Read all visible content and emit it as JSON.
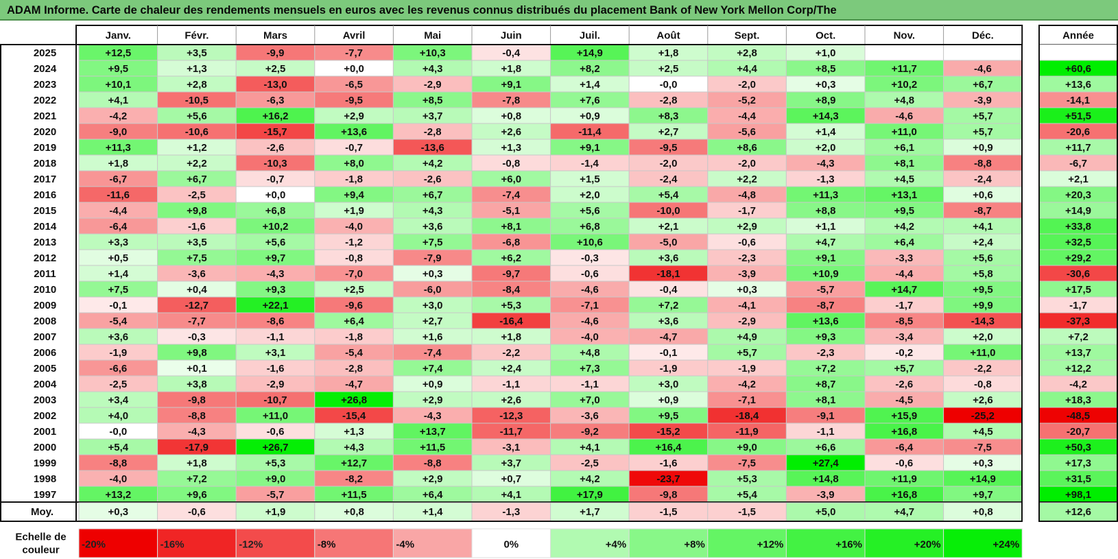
{
  "title": "ADAM Informe. Carte de chaleur des rendements mensuels en euros avec les revenus connus distribués du placement Bank of New York Mellon Corp/The",
  "chart_data": {
    "type": "heatmap",
    "months": [
      "Janv.",
      "Févr.",
      "Mars",
      "Avril",
      "Mai",
      "Juin",
      "Juil.",
      "Août",
      "Sept.",
      "Oct.",
      "Nov.",
      "Déc."
    ],
    "year_header": "Année",
    "rows": [
      {
        "year": "2025",
        "values": [
          "+12,5",
          "+3,5",
          "-9,9",
          "-7,7",
          "+10,3",
          "-0,4",
          "+14,9",
          "+1,8",
          "+2,8",
          "+1,0",
          "",
          ""
        ],
        "annual": ""
      },
      {
        "year": "2024",
        "values": [
          "+9,5",
          "+1,3",
          "+2,5",
          "+0,0",
          "+4,3",
          "+1,8",
          "+8,2",
          "+2,5",
          "+4,4",
          "+8,5",
          "+11,7",
          "-4,6"
        ],
        "annual": "+60,6"
      },
      {
        "year": "2023",
        "values": [
          "+10,1",
          "+2,8",
          "-13,0",
          "-6,5",
          "-2,9",
          "+9,1",
          "+1,4",
          "-0,0",
          "-2,0",
          "+0,3",
          "+10,2",
          "+6,7"
        ],
        "annual": "+13,6"
      },
      {
        "year": "2022",
        "values": [
          "+4,1",
          "-10,5",
          "-6,3",
          "-9,5",
          "+8,5",
          "-7,8",
          "+7,6",
          "-2,8",
          "-5,2",
          "+8,9",
          "+4,8",
          "-3,9"
        ],
        "annual": "-14,1"
      },
      {
        "year": "2021",
        "values": [
          "-4,2",
          "+5,6",
          "+16,2",
          "+2,9",
          "+3,7",
          "+0,8",
          "+0,9",
          "+8,3",
          "-4,4",
          "+14,3",
          "-4,6",
          "+5,7"
        ],
        "annual": "+51,5"
      },
      {
        "year": "2020",
        "values": [
          "-9,0",
          "-10,6",
          "-15,7",
          "+13,6",
          "-2,8",
          "+2,6",
          "-11,4",
          "+2,7",
          "-5,6",
          "+1,4",
          "+11,0",
          "+5,7"
        ],
        "annual": "-20,6"
      },
      {
        "year": "2019",
        "values": [
          "+11,3",
          "+1,2",
          "-2,6",
          "-0,7",
          "-13,6",
          "+1,3",
          "+9,1",
          "-9,5",
          "+8,6",
          "+2,0",
          "+6,1",
          "+0,9"
        ],
        "annual": "+11,7"
      },
      {
        "year": "2018",
        "values": [
          "+1,8",
          "+2,2",
          "-10,3",
          "+8,0",
          "+4,2",
          "-0,8",
          "-1,4",
          "-2,0",
          "-2,0",
          "-4,3",
          "+8,1",
          "-8,8"
        ],
        "annual": "-6,7"
      },
      {
        "year": "2017",
        "values": [
          "-6,7",
          "+6,7",
          "-0,7",
          "-1,8",
          "-2,6",
          "+6,0",
          "+1,5",
          "-2,4",
          "+2,2",
          "-1,3",
          "+4,5",
          "-2,4"
        ],
        "annual": "+2,1"
      },
      {
        "year": "2016",
        "values": [
          "-11,6",
          "-2,5",
          "+0,0",
          "+9,4",
          "+6,7",
          "-7,4",
          "+2,0",
          "+5,4",
          "-4,8",
          "+11,3",
          "+13,1",
          "+0,6"
        ],
        "annual": "+20,3"
      },
      {
        "year": "2015",
        "values": [
          "-4,4",
          "+9,8",
          "+6,8",
          "+1,9",
          "+4,3",
          "-5,1",
          "+5,6",
          "-10,0",
          "-1,7",
          "+8,8",
          "+9,5",
          "-8,7"
        ],
        "annual": "+14,9"
      },
      {
        "year": "2014",
        "values": [
          "-6,4",
          "-1,6",
          "+10,2",
          "-4,0",
          "+3,6",
          "+8,1",
          "+6,8",
          "+2,1",
          "+2,9",
          "+1,1",
          "+4,2",
          "+4,1"
        ],
        "annual": "+33,8"
      },
      {
        "year": "2013",
        "values": [
          "+3,3",
          "+3,5",
          "+5,6",
          "-1,2",
          "+7,5",
          "-6,8",
          "+10,6",
          "-5,0",
          "-0,6",
          "+4,7",
          "+6,4",
          "+2,4"
        ],
        "annual": "+32,5"
      },
      {
        "year": "2012",
        "values": [
          "+0,5",
          "+7,5",
          "+9,7",
          "-0,8",
          "-7,9",
          "+6,2",
          "-0,3",
          "+3,6",
          "-2,3",
          "+9,1",
          "-3,3",
          "+5,6"
        ],
        "annual": "+29,2"
      },
      {
        "year": "2011",
        "values": [
          "+1,4",
          "-3,6",
          "-4,3",
          "-7,0",
          "+0,3",
          "-9,7",
          "-0,6",
          "-18,1",
          "-3,9",
          "+10,9",
          "-4,4",
          "+5,8"
        ],
        "annual": "-30,6"
      },
      {
        "year": "2010",
        "values": [
          "+7,5",
          "+0,4",
          "+9,3",
          "+2,5",
          "-6,0",
          "-8,4",
          "-4,6",
          "-0,4",
          "+0,3",
          "-5,7",
          "+14,7",
          "+9,5"
        ],
        "annual": "+17,5"
      },
      {
        "year": "2009",
        "values": [
          "-0,1",
          "-12,7",
          "+22,1",
          "-9,6",
          "+3,0",
          "+5,3",
          "-7,1",
          "+7,2",
          "-4,1",
          "-8,7",
          "-1,7",
          "+9,9"
        ],
        "annual": "-1,7"
      },
      {
        "year": "2008",
        "values": [
          "-5,4",
          "-7,7",
          "-8,6",
          "+6,4",
          "+2,7",
          "-16,4",
          "-4,6",
          "+3,6",
          "-2,9",
          "+13,6",
          "-8,5",
          "-14,3"
        ],
        "annual": "-37,3"
      },
      {
        "year": "2007",
        "values": [
          "+3,6",
          "-0,3",
          "-1,1",
          "-1,8",
          "+1,6",
          "+1,8",
          "-4,0",
          "-4,7",
          "+4,9",
          "+9,3",
          "-3,4",
          "+2,0"
        ],
        "annual": "+7,2"
      },
      {
        "year": "2006",
        "values": [
          "-1,9",
          "+9,8",
          "+3,1",
          "-5,4",
          "-7,4",
          "-2,2",
          "+4,8",
          "-0,1",
          "+5,7",
          "-2,3",
          "-0,2",
          "+11,0"
        ],
        "annual": "+13,7"
      },
      {
        "year": "2005",
        "values": [
          "-6,6",
          "+0,1",
          "-1,6",
          "-2,8",
          "+7,4",
          "+2,4",
          "+7,3",
          "-1,9",
          "-1,9",
          "+7,2",
          "+5,7",
          "-2,2"
        ],
        "annual": "+12,2"
      },
      {
        "year": "2004",
        "values": [
          "-2,5",
          "+3,8",
          "-2,9",
          "-4,7",
          "+0,9",
          "-1,1",
          "-1,1",
          "+3,0",
          "-4,2",
          "+8,7",
          "-2,6",
          "-0,8"
        ],
        "annual": "-4,2"
      },
      {
        "year": "2003",
        "values": [
          "+3,4",
          "-9,8",
          "-10,7",
          "+26,8",
          "+2,9",
          "+2,6",
          "+7,0",
          "+0,9",
          "-7,1",
          "+8,1",
          "-4,5",
          "+2,6"
        ],
        "annual": "+18,3"
      },
      {
        "year": "2002",
        "values": [
          "+4,0",
          "-8,8",
          "+11,0",
          "-15,4",
          "-4,3",
          "-12,3",
          "-3,6",
          "+9,5",
          "-18,4",
          "-9,1",
          "+15,9",
          "-25,2"
        ],
        "annual": "-48,5"
      },
      {
        "year": "2001",
        "values": [
          "-0,0",
          "-4,3",
          "-0,6",
          "+1,3",
          "+13,7",
          "-11,7",
          "-9,2",
          "-15,2",
          "-11,9",
          "-1,1",
          "+16,8",
          "+4,5"
        ],
        "annual": "-20,7"
      },
      {
        "year": "2000",
        "values": [
          "+5,4",
          "-17,9",
          "+26,7",
          "+4,3",
          "+11,5",
          "-3,1",
          "+4,1",
          "+16,4",
          "+9,0",
          "+6,6",
          "-6,4",
          "-7,5"
        ],
        "annual": "+50,3"
      },
      {
        "year": "1999",
        "values": [
          "-8,8",
          "+1,8",
          "+5,3",
          "+12,7",
          "-8,8",
          "+3,7",
          "-2,5",
          "-1,6",
          "-7,5",
          "+27,4",
          "-0,6",
          "+0,3"
        ],
        "annual": "+17,3"
      },
      {
        "year": "1998",
        "values": [
          "-4,0",
          "+7,2",
          "+9,0",
          "-8,2",
          "+2,9",
          "+0,7",
          "+4,2",
          "-23,7",
          "+5,3",
          "+14,8",
          "+11,9",
          "+14,9"
        ],
        "annual": "+31,5"
      },
      {
        "year": "1997",
        "values": [
          "+13,2",
          "+9,6",
          "-5,7",
          "+11,5",
          "+6,4",
          "+4,1",
          "+17,9",
          "-9,8",
          "+5,4",
          "-3,9",
          "+16,8",
          "+9,7"
        ],
        "annual": "+98,1"
      }
    ],
    "average": {
      "label": "Moy.",
      "values": [
        "+0,3",
        "-0,6",
        "+1,9",
        "+0,8",
        "+1,4",
        "-1,3",
        "+1,7",
        "-1,5",
        "-1,5",
        "+5,0",
        "+4,7",
        "+0,8"
      ],
      "annual": "+12,6"
    },
    "scale": {
      "label_line1": "Echelle de",
      "label_line2": "couleur",
      "items": [
        {
          "label": "-20%",
          "value": -20
        },
        {
          "label": "-16%",
          "value": -16
        },
        {
          "label": "-12%",
          "value": -12
        },
        {
          "label": "-8%",
          "value": -8
        },
        {
          "label": "-4%",
          "value": -4
        },
        {
          "label": "0%",
          "value": 0
        },
        {
          "label": "+4%",
          "value": 4
        },
        {
          "label": "+8%",
          "value": 8
        },
        {
          "label": "+12%",
          "value": 12
        },
        {
          "label": "+16%",
          "value": 16
        },
        {
          "label": "+20%",
          "value": 20
        },
        {
          "label": "+24%",
          "value": 24
        }
      ]
    },
    "colors": {
      "negative_max": "#ee0000",
      "zero": "#ffffff",
      "positive_max": "#00ee00"
    }
  }
}
